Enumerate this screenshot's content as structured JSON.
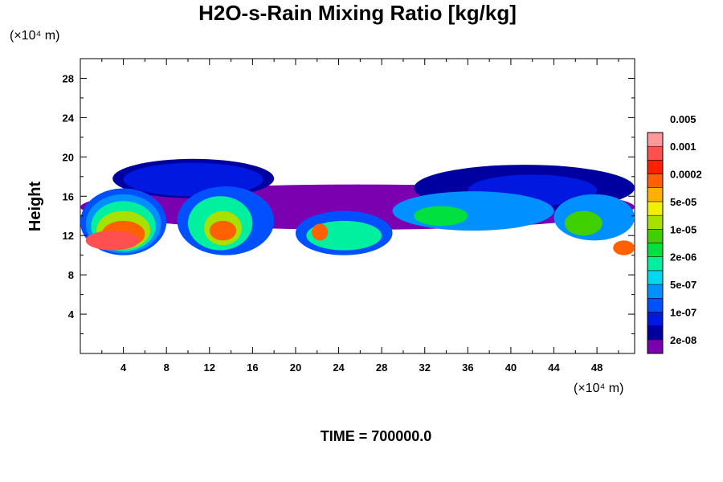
{
  "chart_data": {
    "type": "heatmap",
    "title": "H2O-s-Rain Mixing Ratio [kg/kg]",
    "ylabel": "Height",
    "xunit": "(×10⁴ m)",
    "yunit": "(×10⁴ m)",
    "footer": "TIME = 700000.0",
    "xlim": [
      0,
      51.5
    ],
    "ylim": [
      0,
      30
    ],
    "xticks": [
      "4",
      "8",
      "12",
      "16",
      "20",
      "24",
      "28",
      "32",
      "36",
      "40",
      "44",
      "48"
    ],
    "yticks": [
      "4",
      "8",
      "12",
      "16",
      "20",
      "24",
      "28"
    ],
    "xtick_values": [
      4,
      8,
      12,
      16,
      20,
      24,
      28,
      32,
      36,
      40,
      44,
      48
    ],
    "ytick_values": [
      4,
      8,
      12,
      16,
      20,
      24,
      28
    ],
    "colorbar": {
      "colors": [
        "#7a00b0",
        "#0000a0",
        "#0018e0",
        "#0050ff",
        "#0090ff",
        "#00d8f0",
        "#00f0a0",
        "#00e040",
        "#40d000",
        "#a8e000",
        "#f0f000",
        "#ffb000",
        "#ff6000",
        "#ff2000",
        "#ff5050",
        "#ff9898"
      ],
      "labels": [
        "2e-08",
        "1e-07",
        "5e-07",
        "2e-06",
        "1e-05",
        "5e-05",
        "0.0002",
        "0.001",
        "0.005"
      ],
      "label_levels": [
        1,
        3,
        5,
        7,
        9,
        11,
        13,
        15,
        17
      ]
    },
    "cloud_regions": [
      {
        "level": 0,
        "x": [
          0,
          51.5
        ],
        "y": [
          12.6,
          17.2
        ]
      },
      {
        "level": 1,
        "x": [
          3,
          18
        ],
        "y": [
          15.8,
          19.8
        ]
      },
      {
        "level": 2,
        "x": [
          4,
          17
        ],
        "y": [
          16.0,
          19.4
        ]
      },
      {
        "level": 1,
        "x": [
          31,
          51.5
        ],
        "y": [
          14.5,
          19.2
        ]
      },
      {
        "level": 2,
        "x": [
          36,
          48
        ],
        "y": [
          15.0,
          18.2
        ]
      },
      {
        "level": 3,
        "x": [
          0,
          8
        ],
        "y": [
          10.0,
          16.8
        ]
      },
      {
        "level": 4,
        "x": [
          0.5,
          7.5
        ],
        "y": [
          10.2,
          16.2
        ]
      },
      {
        "level": 6,
        "x": [
          1,
          7
        ],
        "y": [
          10.4,
          15.5
        ]
      },
      {
        "level": 9,
        "x": [
          1.5,
          6.5
        ],
        "y": [
          10.6,
          14.5
        ]
      },
      {
        "level": 12,
        "x": [
          2,
          6
        ],
        "y": [
          10.8,
          13.5
        ]
      },
      {
        "level": 14,
        "x": [
          0.5,
          5.5
        ],
        "y": [
          10.5,
          12.5
        ]
      },
      {
        "level": 3,
        "x": [
          9,
          18
        ],
        "y": [
          10.0,
          17.0
        ]
      },
      {
        "level": 6,
        "x": [
          10,
          16
        ],
        "y": [
          10.5,
          16.0
        ]
      },
      {
        "level": 9,
        "x": [
          11.5,
          15
        ],
        "y": [
          11.0,
          14.5
        ]
      },
      {
        "level": 12,
        "x": [
          12,
          14.5
        ],
        "y": [
          11.5,
          13.5
        ]
      },
      {
        "level": 3,
        "x": [
          20,
          29
        ],
        "y": [
          10.0,
          14.5
        ]
      },
      {
        "level": 6,
        "x": [
          21,
          28
        ],
        "y": [
          10.5,
          13.5
        ]
      },
      {
        "level": 12,
        "x": [
          21.5,
          23
        ],
        "y": [
          11.5,
          13.2
        ]
      },
      {
        "level": 4,
        "x": [
          29,
          44
        ],
        "y": [
          12.5,
          16.5
        ]
      },
      {
        "level": 7,
        "x": [
          31,
          36
        ],
        "y": [
          13.0,
          15.0
        ]
      },
      {
        "level": 4,
        "x": [
          44,
          51.5
        ],
        "y": [
          11.5,
          16.2
        ]
      },
      {
        "level": 8,
        "x": [
          45,
          48.5
        ],
        "y": [
          12.0,
          14.5
        ]
      },
      {
        "level": 12,
        "x": [
          49.5,
          51.5
        ],
        "y": [
          10.0,
          11.5
        ]
      }
    ]
  }
}
